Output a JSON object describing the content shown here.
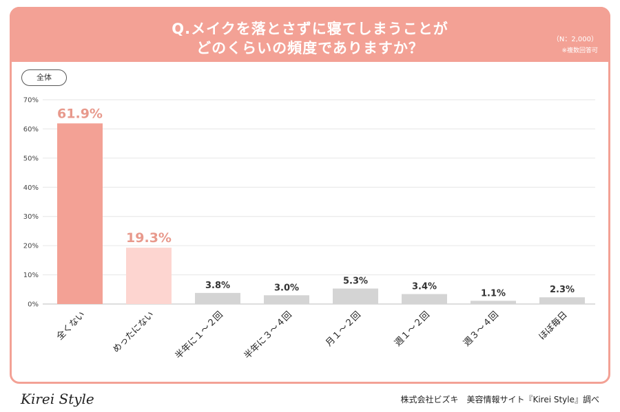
{
  "header": {
    "line1": "Q.メイクを落とさずに寝てしまうことが",
    "line2": "どのくらいの頻度でありますか？",
    "n_label": "（N：2,000）",
    "note": "※複数回答可"
  },
  "badge": "全体",
  "footer": {
    "logo": "Kirei Style",
    "credit": "株式会社ビズキ　美容情報サイト『Kirei Style』調べ"
  },
  "colors": {
    "header": "#f3a195",
    "bar_primary": "#f3a195",
    "bar_secondary": "#fdd5d0",
    "bar_other": "#d4d4d4",
    "label_primary": "#e8998c",
    "label_other": "#333333"
  },
  "chart_data": {
    "type": "bar",
    "categories": [
      "全くない",
      "めったにない",
      "半年に１～２回",
      "半年に３～４回",
      "月１～２回",
      "週１～２回",
      "週３～４回",
      "ほぼ毎日"
    ],
    "values": [
      61.9,
      19.3,
      3.8,
      3.0,
      5.3,
      3.4,
      1.1,
      2.3
    ],
    "value_labels": [
      "61.9%",
      "19.3%",
      "3.8%",
      "3.0%",
      "5.3%",
      "3.4%",
      "1.1%",
      "2.3%"
    ],
    "ylim": [
      0,
      70
    ],
    "yticks": [
      "0%",
      "10%",
      "20%",
      "30%",
      "40%",
      "50%",
      "60%",
      "70%"
    ],
    "grid": true
  }
}
